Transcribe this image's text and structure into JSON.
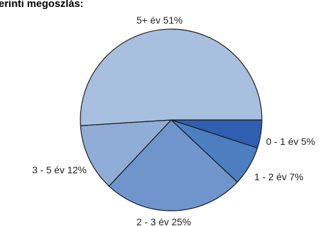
{
  "chart_data": {
    "type": "pie",
    "title": "erinti megoszlás:",
    "slices": [
      {
        "label": "0 - 1 év 5%",
        "value": 5,
        "color": "#2f5fae"
      },
      {
        "label": "1 - 2 év 7%",
        "value": 7,
        "color": "#4d7ec0"
      },
      {
        "label": "2 - 3 év 25%",
        "value": 25,
        "color": "#6f95cc"
      },
      {
        "label": "3 - 5 év 12%",
        "value": 12,
        "color": "#8fadd7"
      },
      {
        "label": "5+ év 51%",
        "value": 51,
        "color": "#a8bfe0"
      }
    ]
  }
}
